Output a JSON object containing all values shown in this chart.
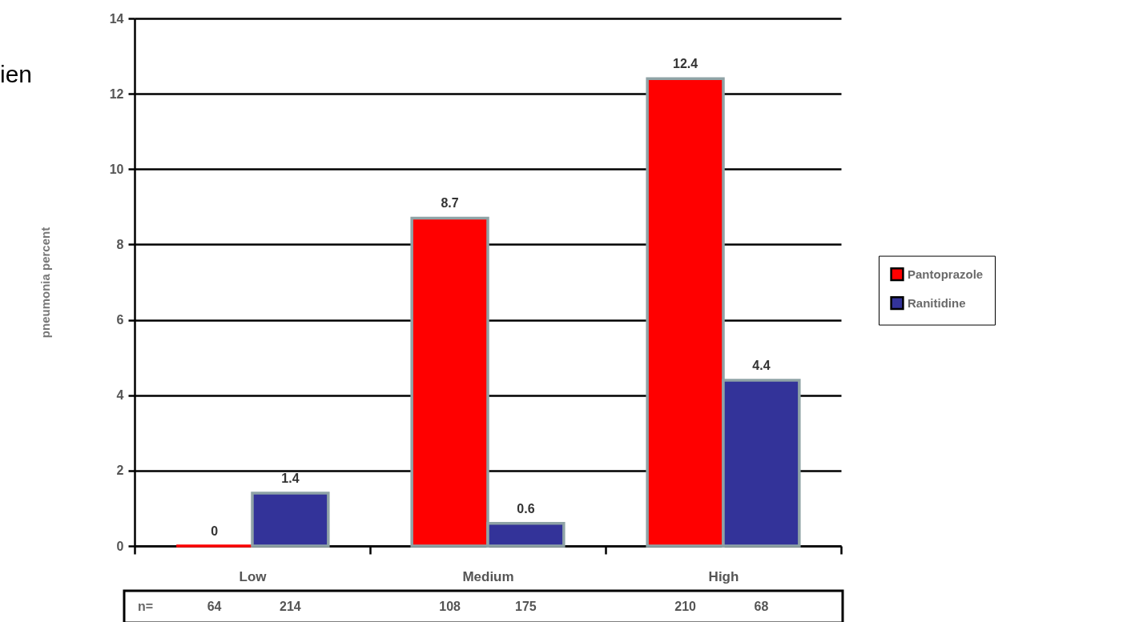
{
  "chart_data": {
    "type": "bar",
    "ylabel": "pneumonia percent",
    "categories": [
      "Low",
      "Medium",
      "High"
    ],
    "series": [
      {
        "name": "Pantoprazole",
        "color": "#ff0000",
        "values": [
          0,
          8.7,
          12.4
        ]
      },
      {
        "name": "Ranitidine",
        "color": "#333399",
        "values": [
          1.4,
          0.6,
          4.4
        ]
      }
    ],
    "ylim": [
      0,
      14
    ],
    "yticks": [
      0,
      2,
      4,
      6,
      8,
      10,
      12,
      14
    ],
    "grid": "y",
    "legend": "right",
    "data_labels": true,
    "annotations": [
      "ien",
      "n=",
      "64",
      "214",
      "108",
      "175",
      "210",
      "68"
    ]
  }
}
